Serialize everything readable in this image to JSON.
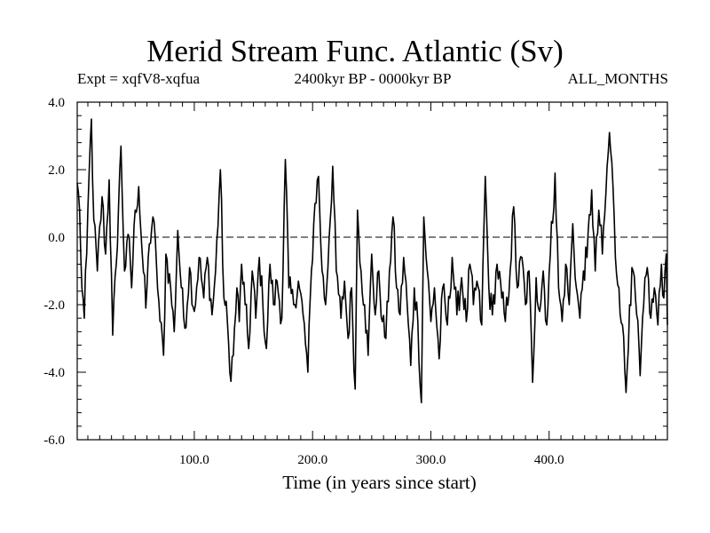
{
  "chart_data": {
    "type": "line",
    "title": "Merid Stream Func. Atlantic (Sv)",
    "subtitle_left": "Expt = xqfV8-xqfua",
    "subtitle_center": "2400kyr BP - 0000kyr BP",
    "subtitle_right": "ALL_MONTHS",
    "xlabel": "Time (in years since start)",
    "ylabel": "",
    "xlim": [
      1,
      500
    ],
    "ylim": [
      -6.0,
      4.0
    ],
    "xticks": [
      100.0,
      200.0,
      300.0,
      400.0
    ],
    "xtick_labels": [
      "100.0",
      "200.0",
      "300.0",
      "400.0"
    ],
    "yticks": [
      4.0,
      2.0,
      0.0,
      -2.0,
      -4.0,
      -6.0
    ],
    "ytick_labels": [
      "4.0",
      "2.0",
      "0.0",
      "-2.0",
      "-4.0",
      "-6.0"
    ],
    "reference_line": 0.0,
    "series": [
      {
        "name": "Merid Stream Func. Atlantic",
        "anchors": [
          [
            1,
            1.6
          ],
          [
            3,
            0.8
          ],
          [
            5,
            -1.5
          ],
          [
            7,
            -2.4
          ],
          [
            9,
            -0.5
          ],
          [
            11,
            1.8
          ],
          [
            13,
            3.5
          ],
          [
            15,
            0.5
          ],
          [
            18,
            -1.0
          ],
          [
            22,
            1.2
          ],
          [
            25,
            -0.5
          ],
          [
            28,
            1.7
          ],
          [
            31,
            -2.9
          ],
          [
            34,
            -0.8
          ],
          [
            38,
            2.7
          ],
          [
            41,
            -1.0
          ],
          [
            45,
            0.0
          ],
          [
            47,
            -1.5
          ],
          [
            50,
            0.8
          ],
          [
            53,
            1.5
          ],
          [
            56,
            -0.5
          ],
          [
            59,
            -2.1
          ],
          [
            62,
            -0.2
          ],
          [
            65,
            0.6
          ],
          [
            68,
            -0.8
          ],
          [
            71,
            -2.5
          ],
          [
            74,
            -3.5
          ],
          [
            76,
            -0.5
          ],
          [
            80,
            -1.5
          ],
          [
            83,
            -2.8
          ],
          [
            86,
            0.2
          ],
          [
            89,
            -1.5
          ],
          [
            92,
            -2.7
          ],
          [
            96,
            -0.9
          ],
          [
            100,
            -2.2
          ],
          [
            104,
            -0.6
          ],
          [
            108,
            -1.8
          ],
          [
            111,
            -0.6
          ],
          [
            115,
            -2.3
          ],
          [
            118,
            -1.0
          ],
          [
            122,
            2.0
          ],
          [
            125,
            -1.8
          ],
          [
            128,
            -2.5
          ],
          [
            130,
            -4.0
          ],
          [
            133,
            -3.5
          ],
          [
            136,
            -1.5
          ],
          [
            138,
            -2.5
          ],
          [
            140,
            -0.8
          ],
          [
            143,
            -2.0
          ],
          [
            146,
            -3.3
          ],
          [
            149,
            -1.0
          ],
          [
            152,
            -2.4
          ],
          [
            155,
            -0.6
          ],
          [
            158,
            -2.0
          ],
          [
            161,
            -3.3
          ],
          [
            164,
            -0.8
          ],
          [
            167,
            -2.0
          ],
          [
            170,
            -1.3
          ],
          [
            174,
            -2.4
          ],
          [
            177,
            2.3
          ],
          [
            180,
            -1.5
          ],
          [
            184,
            -2.0
          ],
          [
            188,
            -1.3
          ],
          [
            192,
            -2.3
          ],
          [
            196,
            -4.0
          ],
          [
            199,
            -1.0
          ],
          [
            202,
            1.0
          ],
          [
            205,
            1.8
          ],
          [
            208,
            -1.0
          ],
          [
            211,
            -2.0
          ],
          [
            214,
            0.0
          ],
          [
            217,
            2.1
          ],
          [
            220,
            -1.0
          ],
          [
            224,
            -2.4
          ],
          [
            227,
            -1.3
          ],
          [
            230,
            -3.0
          ],
          [
            233,
            -1.5
          ],
          [
            236,
            -4.5
          ],
          [
            238,
            0.8
          ],
          [
            241,
            -1.0
          ],
          [
            244,
            -2.0
          ],
          [
            247,
            -3.5
          ],
          [
            250,
            -0.5
          ],
          [
            253,
            -2.3
          ],
          [
            256,
            -1.0
          ],
          [
            259,
            -2.5
          ],
          [
            262,
            -3.0
          ],
          [
            265,
            -1.0
          ],
          [
            268,
            0.6
          ],
          [
            271,
            -1.5
          ],
          [
            274,
            -2.3
          ],
          [
            277,
            -0.6
          ],
          [
            280,
            -2.0
          ],
          [
            283,
            -3.8
          ],
          [
            286,
            -1.5
          ],
          [
            289,
            -2.5
          ],
          [
            292,
            -4.9
          ],
          [
            294,
            0.6
          ],
          [
            297,
            -1.0
          ],
          [
            300,
            -2.5
          ],
          [
            303,
            -1.5
          ],
          [
            307,
            -3.6
          ],
          [
            310,
            -1.5
          ],
          [
            314,
            -2.6
          ],
          [
            318,
            -0.6
          ],
          [
            322,
            -2.3
          ],
          [
            326,
            -1.2
          ],
          [
            330,
            -2.5
          ],
          [
            333,
            -0.8
          ],
          [
            336,
            -2.0
          ],
          [
            339,
            -1.3
          ],
          [
            343,
            -2.6
          ],
          [
            346,
            1.8
          ],
          [
            349,
            -1.5
          ],
          [
            352,
            -2.3
          ],
          [
            356,
            -0.8
          ],
          [
            360,
            -1.8
          ],
          [
            363,
            -2.5
          ],
          [
            367,
            -1.0
          ],
          [
            370,
            0.9
          ],
          [
            373,
            -1.5
          ],
          [
            377,
            -0.6
          ],
          [
            380,
            -2.0
          ],
          [
            383,
            -1.0
          ],
          [
            386,
            -4.3
          ],
          [
            389,
            -1.2
          ],
          [
            392,
            -2.2
          ],
          [
            395,
            -1.0
          ],
          [
            398,
            -2.6
          ],
          [
            401,
            -0.5
          ],
          [
            405,
            1.9
          ],
          [
            408,
            -1.5
          ],
          [
            411,
            -2.5
          ],
          [
            414,
            -0.8
          ],
          [
            417,
            -2.0
          ],
          [
            420,
            0.4
          ],
          [
            423,
            -1.5
          ],
          [
            426,
            -2.4
          ],
          [
            429,
            -1.0
          ],
          [
            432,
            -0.6
          ],
          [
            436,
            1.4
          ],
          [
            439,
            -1.0
          ],
          [
            442,
            0.8
          ],
          [
            445,
            -0.5
          ],
          [
            448,
            1.3
          ],
          [
            451,
            3.1
          ],
          [
            454,
            1.5
          ],
          [
            456,
            -0.6
          ],
          [
            459,
            -1.5
          ],
          [
            462,
            -2.6
          ],
          [
            465,
            -4.6
          ],
          [
            468,
            -2.0
          ],
          [
            471,
            -1.0
          ],
          [
            474,
            -2.3
          ],
          [
            477,
            -4.1
          ],
          [
            480,
            -2.0
          ],
          [
            483,
            -0.9
          ],
          [
            486,
            -2.4
          ],
          [
            489,
            -1.5
          ],
          [
            492,
            -2.6
          ],
          [
            495,
            -0.8
          ],
          [
            497,
            -1.8
          ],
          [
            499,
            -0.5
          ],
          [
            500,
            -2.6
          ]
        ]
      }
    ]
  }
}
